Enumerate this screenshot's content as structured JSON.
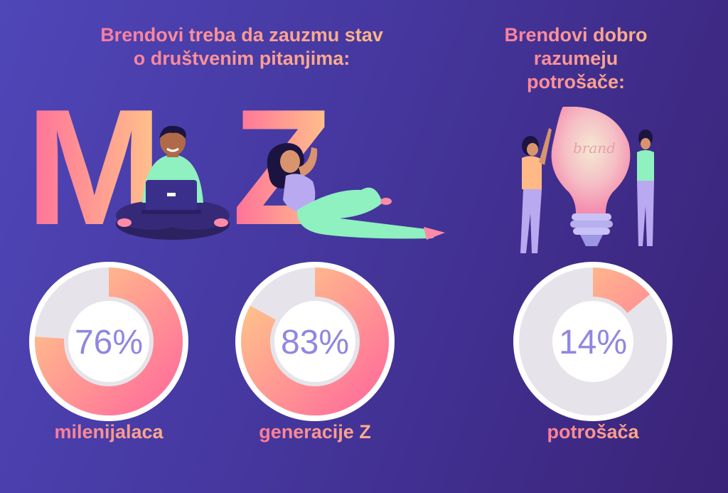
{
  "headings": {
    "left": "Brendovi treba da zauzmu stav o društvenim pitanjima:",
    "right": "Brendovi dobro razumeju potrošače:"
  },
  "letters": {
    "m": "M",
    "z": "Z"
  },
  "bulb_word": "brand",
  "stats": [
    {
      "value": 76,
      "label": "76%",
      "caption": "milenijalaca"
    },
    {
      "value": 83,
      "label": "83%",
      "caption": "generacije Z"
    },
    {
      "value": 14,
      "label": "14%",
      "caption": "potrošača"
    }
  ],
  "colors": {
    "background_start": "#4f46b8",
    "background_end": "#3a2377",
    "gradient_pink": "#ff6f9a",
    "gradient_orange": "#ffc58a",
    "ring_track": "#e6e4ea",
    "ring_inner": "#ffffff",
    "percent_text": "#8f87e0"
  }
}
